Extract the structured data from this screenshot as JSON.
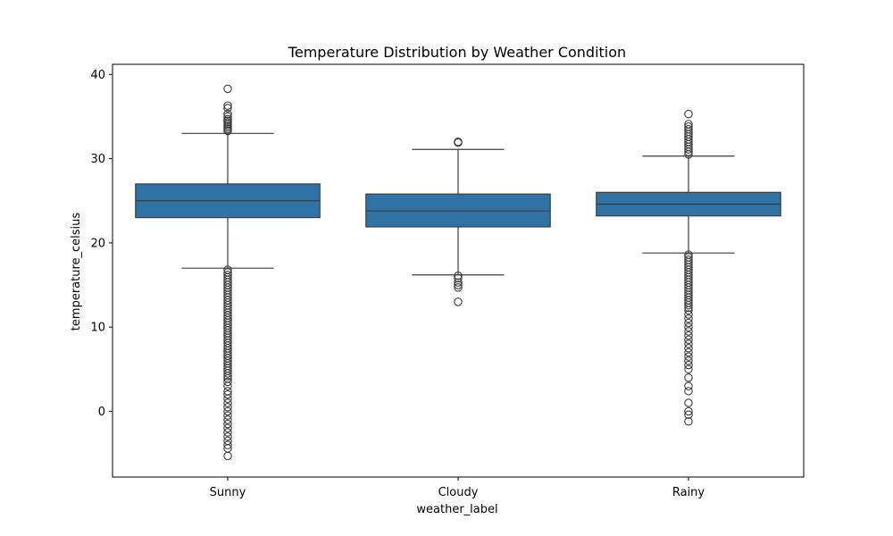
{
  "chart_data": {
    "type": "box",
    "title": "Temperature Distribution by Weather Condition",
    "xlabel": "weather_label",
    "ylabel": "temperature_celsius",
    "ylim": [
      -7.8,
      41.2
    ],
    "yticks": [
      0,
      10,
      20,
      30,
      40
    ],
    "categories": [
      "Sunny",
      "Cloudy",
      "Rainy"
    ],
    "box_color": "#2f73a6",
    "line_color": "#3d3d3d",
    "grid": false,
    "boxes": [
      {
        "category": "Sunny",
        "whisker_low": 17.0,
        "q1": 23.0,
        "median": 25.0,
        "q3": 27.0,
        "whisker_high": 33.0,
        "outliers": [
          38.3,
          36.3,
          36.0,
          35.3,
          35.0,
          34.7,
          34.5,
          34.3,
          34.1,
          33.9,
          33.7,
          33.5,
          33.3,
          16.8,
          16.5,
          16.2,
          15.9,
          15.6,
          15.3,
          15.0,
          14.7,
          14.4,
          14.1,
          13.8,
          13.5,
          13.2,
          12.9,
          12.6,
          12.3,
          12.0,
          11.7,
          11.4,
          11.1,
          10.8,
          10.5,
          10.2,
          9.9,
          9.6,
          9.3,
          9.0,
          8.7,
          8.4,
          8.1,
          7.8,
          7.5,
          7.2,
          6.9,
          6.6,
          6.3,
          6.0,
          5.7,
          5.4,
          5.1,
          4.8,
          4.5,
          4.2,
          3.9,
          3.5,
          3.0,
          2.4,
          2.0,
          1.5,
          1.0,
          0.5,
          0.0,
          -0.5,
          -1.0,
          -1.5,
          -2.0,
          -2.5,
          -3.0,
          -3.5,
          -4.0,
          -4.4,
          -5.3
        ]
      },
      {
        "category": "Cloudy",
        "whisker_low": 16.2,
        "q1": 21.9,
        "median": 23.8,
        "q3": 25.8,
        "whisker_high": 31.1,
        "outliers": [
          32.0,
          31.9,
          16.1,
          15.8,
          15.3,
          15.0,
          14.7,
          13.0
        ]
      },
      {
        "category": "Rainy",
        "whisker_low": 18.8,
        "q1": 23.2,
        "median": 24.6,
        "q3": 26.0,
        "whisker_high": 30.3,
        "outliers": [
          35.3,
          34.1,
          33.8,
          33.5,
          33.2,
          32.9,
          32.6,
          32.3,
          32.0,
          31.7,
          31.4,
          31.1,
          30.8,
          30.5,
          18.6,
          18.3,
          18.0,
          17.7,
          17.4,
          17.1,
          16.8,
          16.5,
          16.2,
          15.9,
          15.6,
          15.3,
          15.0,
          14.7,
          14.4,
          14.1,
          13.8,
          13.5,
          13.2,
          12.9,
          12.6,
          12.3,
          12.0,
          11.5,
          11.0,
          10.5,
          10.0,
          9.5,
          9.0,
          8.5,
          8.0,
          7.5,
          7.0,
          6.5,
          6.0,
          5.5,
          5.0,
          4.0,
          3.0,
          2.4,
          1.0,
          0.0,
          -0.4,
          -1.2
        ]
      }
    ]
  }
}
